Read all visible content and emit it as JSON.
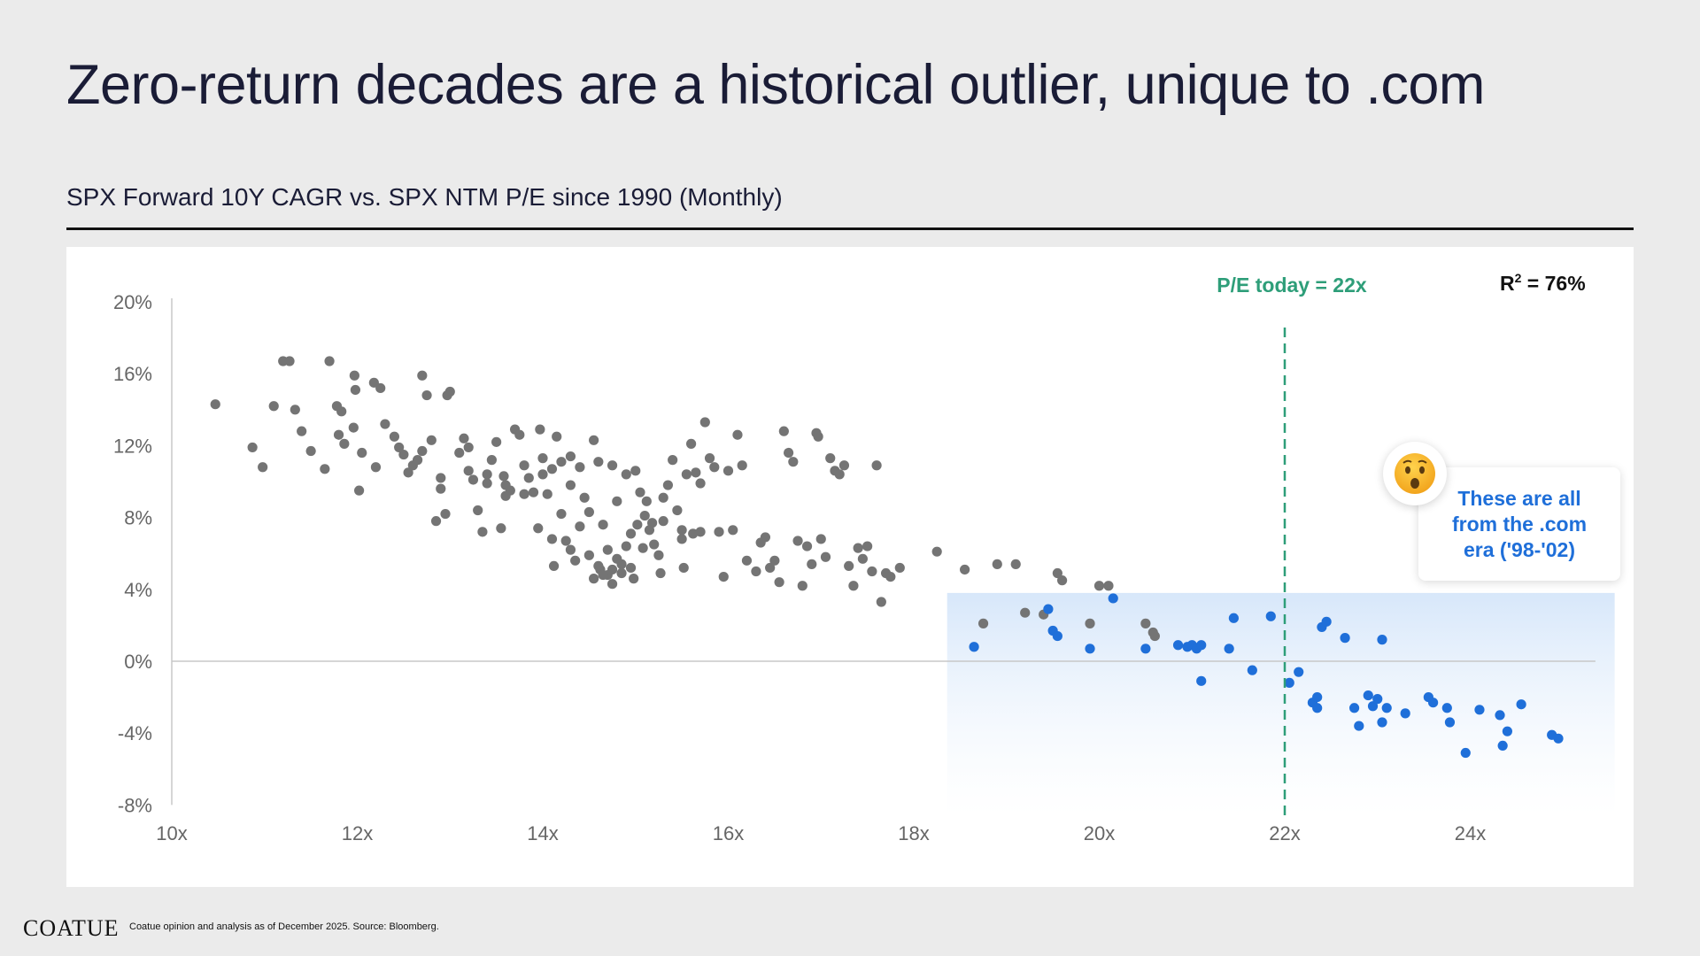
{
  "title": "Zero-return decades are a historical outlier, unique to .com",
  "subtitle": "SPX Forward 10Y CAGR vs. SPX NTM P/E since 1990 (Monthly)",
  "footer": {
    "logo": "COATUE",
    "note": "Coatue opinion and analysis as of December 2025. Source: Bloomberg."
  },
  "colors": {
    "background": "#ebebeb",
    "grey_points": "#747474",
    "blue_points": "#1f6fd9",
    "pe_line": "#2e9e79",
    "highlight_band": "#d7e7fa"
  },
  "callout": {
    "text": "These are all from the .com era ('98-'02)",
    "icon": "surprised-face-emoji"
  },
  "chart_data": {
    "type": "scatter",
    "title": "",
    "xlabel": "",
    "ylabel": "",
    "xlim": [
      10,
      25.5
    ],
    "ylim": [
      -8,
      20
    ],
    "x_ticks": [
      "10x",
      "12x",
      "14x",
      "16x",
      "18x",
      "20x",
      "22x",
      "24x"
    ],
    "x_tick_values": [
      10,
      12,
      14,
      16,
      18,
      20,
      22,
      24
    ],
    "y_ticks": [
      "20%",
      "16%",
      "12%",
      "8%",
      "4%",
      "0%",
      "-4%",
      "-8%"
    ],
    "y_tick_values": [
      20,
      16,
      12,
      8,
      4,
      0,
      -4,
      -8
    ],
    "grid": false,
    "zero_line": true,
    "reference_line": {
      "x": 22,
      "label": "P/E today = 22x"
    },
    "r2_label": "R",
    "r2_sup": "2",
    "r2_value": " = 76%",
    "highlight_region": {
      "x": [
        18.36,
        25.5
      ],
      "y": [
        -8,
        3.8
      ]
    },
    "series": [
      {
        "color": "#747474",
        "points": [
          [
            10.47,
            14.3
          ],
          [
            10.87,
            11.9
          ],
          [
            10.98,
            10.8
          ],
          [
            11.1,
            14.2
          ],
          [
            11.2,
            16.7
          ],
          [
            11.27,
            16.7
          ],
          [
            11.33,
            14
          ],
          [
            11.4,
            12.8
          ],
          [
            11.5,
            11.7
          ],
          [
            11.65,
            10.7
          ],
          [
            11.7,
            16.7
          ],
          [
            11.78,
            14.2
          ],
          [
            11.8,
            12.6
          ],
          [
            11.83,
            13.9
          ],
          [
            11.86,
            12.1
          ],
          [
            11.96,
            13
          ],
          [
            11.97,
            15.9
          ],
          [
            11.98,
            15.1
          ],
          [
            12.02,
            9.5
          ],
          [
            12.05,
            11.6
          ],
          [
            12.18,
            15.5
          ],
          [
            12.2,
            10.8
          ],
          [
            12.25,
            15.2
          ],
          [
            12.3,
            13.2
          ],
          [
            12.4,
            12.5
          ],
          [
            12.45,
            11.9
          ],
          [
            12.5,
            11.5
          ],
          [
            12.55,
            10.5
          ],
          [
            12.6,
            10.9
          ],
          [
            12.65,
            11.2
          ],
          [
            12.7,
            15.9
          ],
          [
            12.75,
            14.8
          ],
          [
            12.8,
            12.3
          ],
          [
            12.85,
            7.8
          ],
          [
            12.9,
            9.6
          ],
          [
            12.95,
            8.2
          ],
          [
            12.97,
            14.8
          ],
          [
            13,
            15
          ],
          [
            13.1,
            11.6
          ],
          [
            13.15,
            12.4
          ],
          [
            13.2,
            11.9
          ],
          [
            13.25,
            10.1
          ],
          [
            13.3,
            8.4
          ],
          [
            13.35,
            7.2
          ],
          [
            13.4,
            10.4
          ],
          [
            13.45,
            11.2
          ],
          [
            13.5,
            12.2
          ],
          [
            13.55,
            7.4
          ],
          [
            13.58,
            10.3
          ],
          [
            13.6,
            9.8
          ],
          [
            13.65,
            9.5
          ],
          [
            13.7,
            12.9
          ],
          [
            13.75,
            12.6
          ],
          [
            13.8,
            10.9
          ],
          [
            13.85,
            10.2
          ],
          [
            13.9,
            9.4
          ],
          [
            13.95,
            7.4
          ],
          [
            13.97,
            12.9
          ],
          [
            14,
            11.3
          ],
          [
            14.05,
            9.3
          ],
          [
            14.1,
            10.7
          ],
          [
            14.12,
            5.3
          ],
          [
            14.15,
            12.5
          ],
          [
            14.2,
            8.2
          ],
          [
            14.25,
            6.7
          ],
          [
            14.3,
            11.4
          ],
          [
            14.35,
            5.6
          ],
          [
            14.4,
            10.8
          ],
          [
            14.45,
            9.1
          ],
          [
            14.5,
            8.3
          ],
          [
            14.55,
            12.3
          ],
          [
            14.6,
            11.1
          ],
          [
            14.62,
            5.1
          ],
          [
            14.65,
            7.6
          ],
          [
            14.7,
            6.2
          ],
          [
            14.75,
            10.9
          ],
          [
            14.8,
            8.9
          ],
          [
            14.85,
            5.4
          ],
          [
            14.9,
            10.4
          ],
          [
            14.95,
            7.1
          ],
          [
            14.98,
            4.6
          ],
          [
            15,
            10.6
          ],
          [
            15.05,
            9.4
          ],
          [
            15.1,
            8.1
          ],
          [
            15.15,
            7.3
          ],
          [
            15.2,
            6.5
          ],
          [
            15.25,
            5.9
          ],
          [
            15.27,
            4.9
          ],
          [
            15.3,
            7.8
          ],
          [
            15.35,
            9.8
          ],
          [
            15.4,
            11.2
          ],
          [
            15.45,
            8.4
          ],
          [
            15.5,
            6.8
          ],
          [
            15.52,
            5.2
          ],
          [
            15.55,
            10.4
          ],
          [
            15.6,
            12.1
          ],
          [
            15.62,
            7.1
          ],
          [
            15.65,
            10.5
          ],
          [
            15.7,
            9.9
          ],
          [
            15.75,
            13.3
          ],
          [
            15.8,
            11.3
          ],
          [
            15.85,
            10.8
          ],
          [
            15.9,
            7.2
          ],
          [
            15.95,
            4.7
          ],
          [
            16,
            10.6
          ],
          [
            16.05,
            7.3
          ],
          [
            16.1,
            12.6
          ],
          [
            16.15,
            10.9
          ],
          [
            16.2,
            5.6
          ],
          [
            16.3,
            5.0
          ],
          [
            16.35,
            6.6
          ],
          [
            16.4,
            6.9
          ],
          [
            16.45,
            5.2
          ],
          [
            16.5,
            5.6
          ],
          [
            16.55,
            4.4
          ],
          [
            16.6,
            12.8
          ],
          [
            16.65,
            11.6
          ],
          [
            16.7,
            11.1
          ],
          [
            16.75,
            6.7
          ],
          [
            16.8,
            4.2
          ],
          [
            16.85,
            6.4
          ],
          [
            16.9,
            5.4
          ],
          [
            16.95,
            12.7
          ],
          [
            16.97,
            12.5
          ],
          [
            17,
            6.8
          ],
          [
            17.05,
            5.8
          ],
          [
            17.1,
            11.3
          ],
          [
            17.15,
            10.6
          ],
          [
            17.2,
            10.4
          ],
          [
            17.25,
            10.9
          ],
          [
            17.3,
            5.3
          ],
          [
            17.35,
            4.2
          ],
          [
            17.4,
            6.3
          ],
          [
            17.45,
            5.7
          ],
          [
            17.5,
            6.4
          ],
          [
            17.55,
            5.0
          ],
          [
            17.6,
            10.9
          ],
          [
            17.65,
            3.3
          ],
          [
            17.7,
            4.9
          ],
          [
            17.75,
            4.7
          ],
          [
            17.85,
            5.2
          ],
          [
            18.25,
            6.1
          ],
          [
            18.55,
            5.1
          ],
          [
            18.75,
            2.1
          ],
          [
            18.9,
            5.4
          ],
          [
            19.1,
            5.4
          ],
          [
            19.2,
            2.7
          ],
          [
            19.4,
            2.6
          ],
          [
            19.55,
            4.9
          ],
          [
            19.6,
            4.5
          ],
          [
            19.9,
            2.1
          ],
          [
            20,
            4.2
          ],
          [
            20.1,
            4.2
          ],
          [
            20.5,
            2.1
          ],
          [
            20.58,
            1.6
          ],
          [
            20.6,
            1.4
          ],
          [
            14.3,
            9.8
          ],
          [
            14.4,
            7.5
          ],
          [
            14.5,
            5.9
          ],
          [
            14.6,
            5.3
          ],
          [
            14.7,
            4.8
          ],
          [
            14.75,
            4.3
          ],
          [
            14.8,
            5.7
          ],
          [
            14.85,
            4.9
          ],
          [
            14.9,
            6.4
          ],
          [
            14.95,
            5.2
          ],
          [
            15.02,
            7.6
          ],
          [
            15.08,
            6.3
          ],
          [
            15.12,
            8.9
          ],
          [
            15.18,
            7.7
          ],
          [
            13.2,
            10.6
          ],
          [
            13.4,
            9.9
          ],
          [
            13.6,
            9.2
          ],
          [
            13.8,
            9.3
          ],
          [
            14,
            10.4
          ],
          [
            14.2,
            11.1
          ],
          [
            12.7,
            11.7
          ],
          [
            12.9,
            10.2
          ],
          [
            15.3,
            9.1
          ],
          [
            15.5,
            7.3
          ],
          [
            15.7,
            7.2
          ],
          [
            14.1,
            6.8
          ],
          [
            14.3,
            6.2
          ],
          [
            14.55,
            4.6
          ],
          [
            14.65,
            4.8
          ],
          [
            14.75,
            5.1
          ]
        ]
      },
      {
        "color": "#1f6fd9",
        "points": [
          [
            18.65,
            0.8
          ],
          [
            19.45,
            2.9
          ],
          [
            19.5,
            1.7
          ],
          [
            19.55,
            1.4
          ],
          [
            19.9,
            0.7
          ],
          [
            20.15,
            3.5
          ],
          [
            20.5,
            0.7
          ],
          [
            20.85,
            0.9
          ],
          [
            20.95,
            0.8
          ],
          [
            21,
            0.9
          ],
          [
            21.05,
            0.7
          ],
          [
            21.1,
            0.9
          ],
          [
            21.1,
            -1.1
          ],
          [
            21.4,
            0.7
          ],
          [
            21.45,
            2.4
          ],
          [
            21.65,
            -0.5
          ],
          [
            21.85,
            2.5
          ],
          [
            22.05,
            -1.2
          ],
          [
            22.15,
            -0.6
          ],
          [
            22.3,
            -2.3
          ],
          [
            22.35,
            -2.0
          ],
          [
            22.35,
            -2.6
          ],
          [
            22.4,
            1.9
          ],
          [
            22.45,
            2.2
          ],
          [
            22.65,
            1.3
          ],
          [
            22.75,
            -2.6
          ],
          [
            22.8,
            -3.6
          ],
          [
            22.9,
            -1.9
          ],
          [
            22.95,
            -2.5
          ],
          [
            23,
            -2.1
          ],
          [
            23.05,
            -3.4
          ],
          [
            23.05,
            1.2
          ],
          [
            23.1,
            -2.6
          ],
          [
            23.3,
            -2.9
          ],
          [
            23.55,
            -2.0
          ],
          [
            23.6,
            -2.3
          ],
          [
            23.75,
            -2.6
          ],
          [
            23.78,
            -3.4
          ],
          [
            23.95,
            -5.1
          ],
          [
            24.1,
            -2.7
          ],
          [
            24.32,
            -3.0
          ],
          [
            24.35,
            -4.7
          ],
          [
            24.4,
            -3.9
          ],
          [
            24.55,
            -2.4
          ],
          [
            24.88,
            -4.1
          ],
          [
            24.95,
            -4.3
          ]
        ]
      }
    ]
  }
}
